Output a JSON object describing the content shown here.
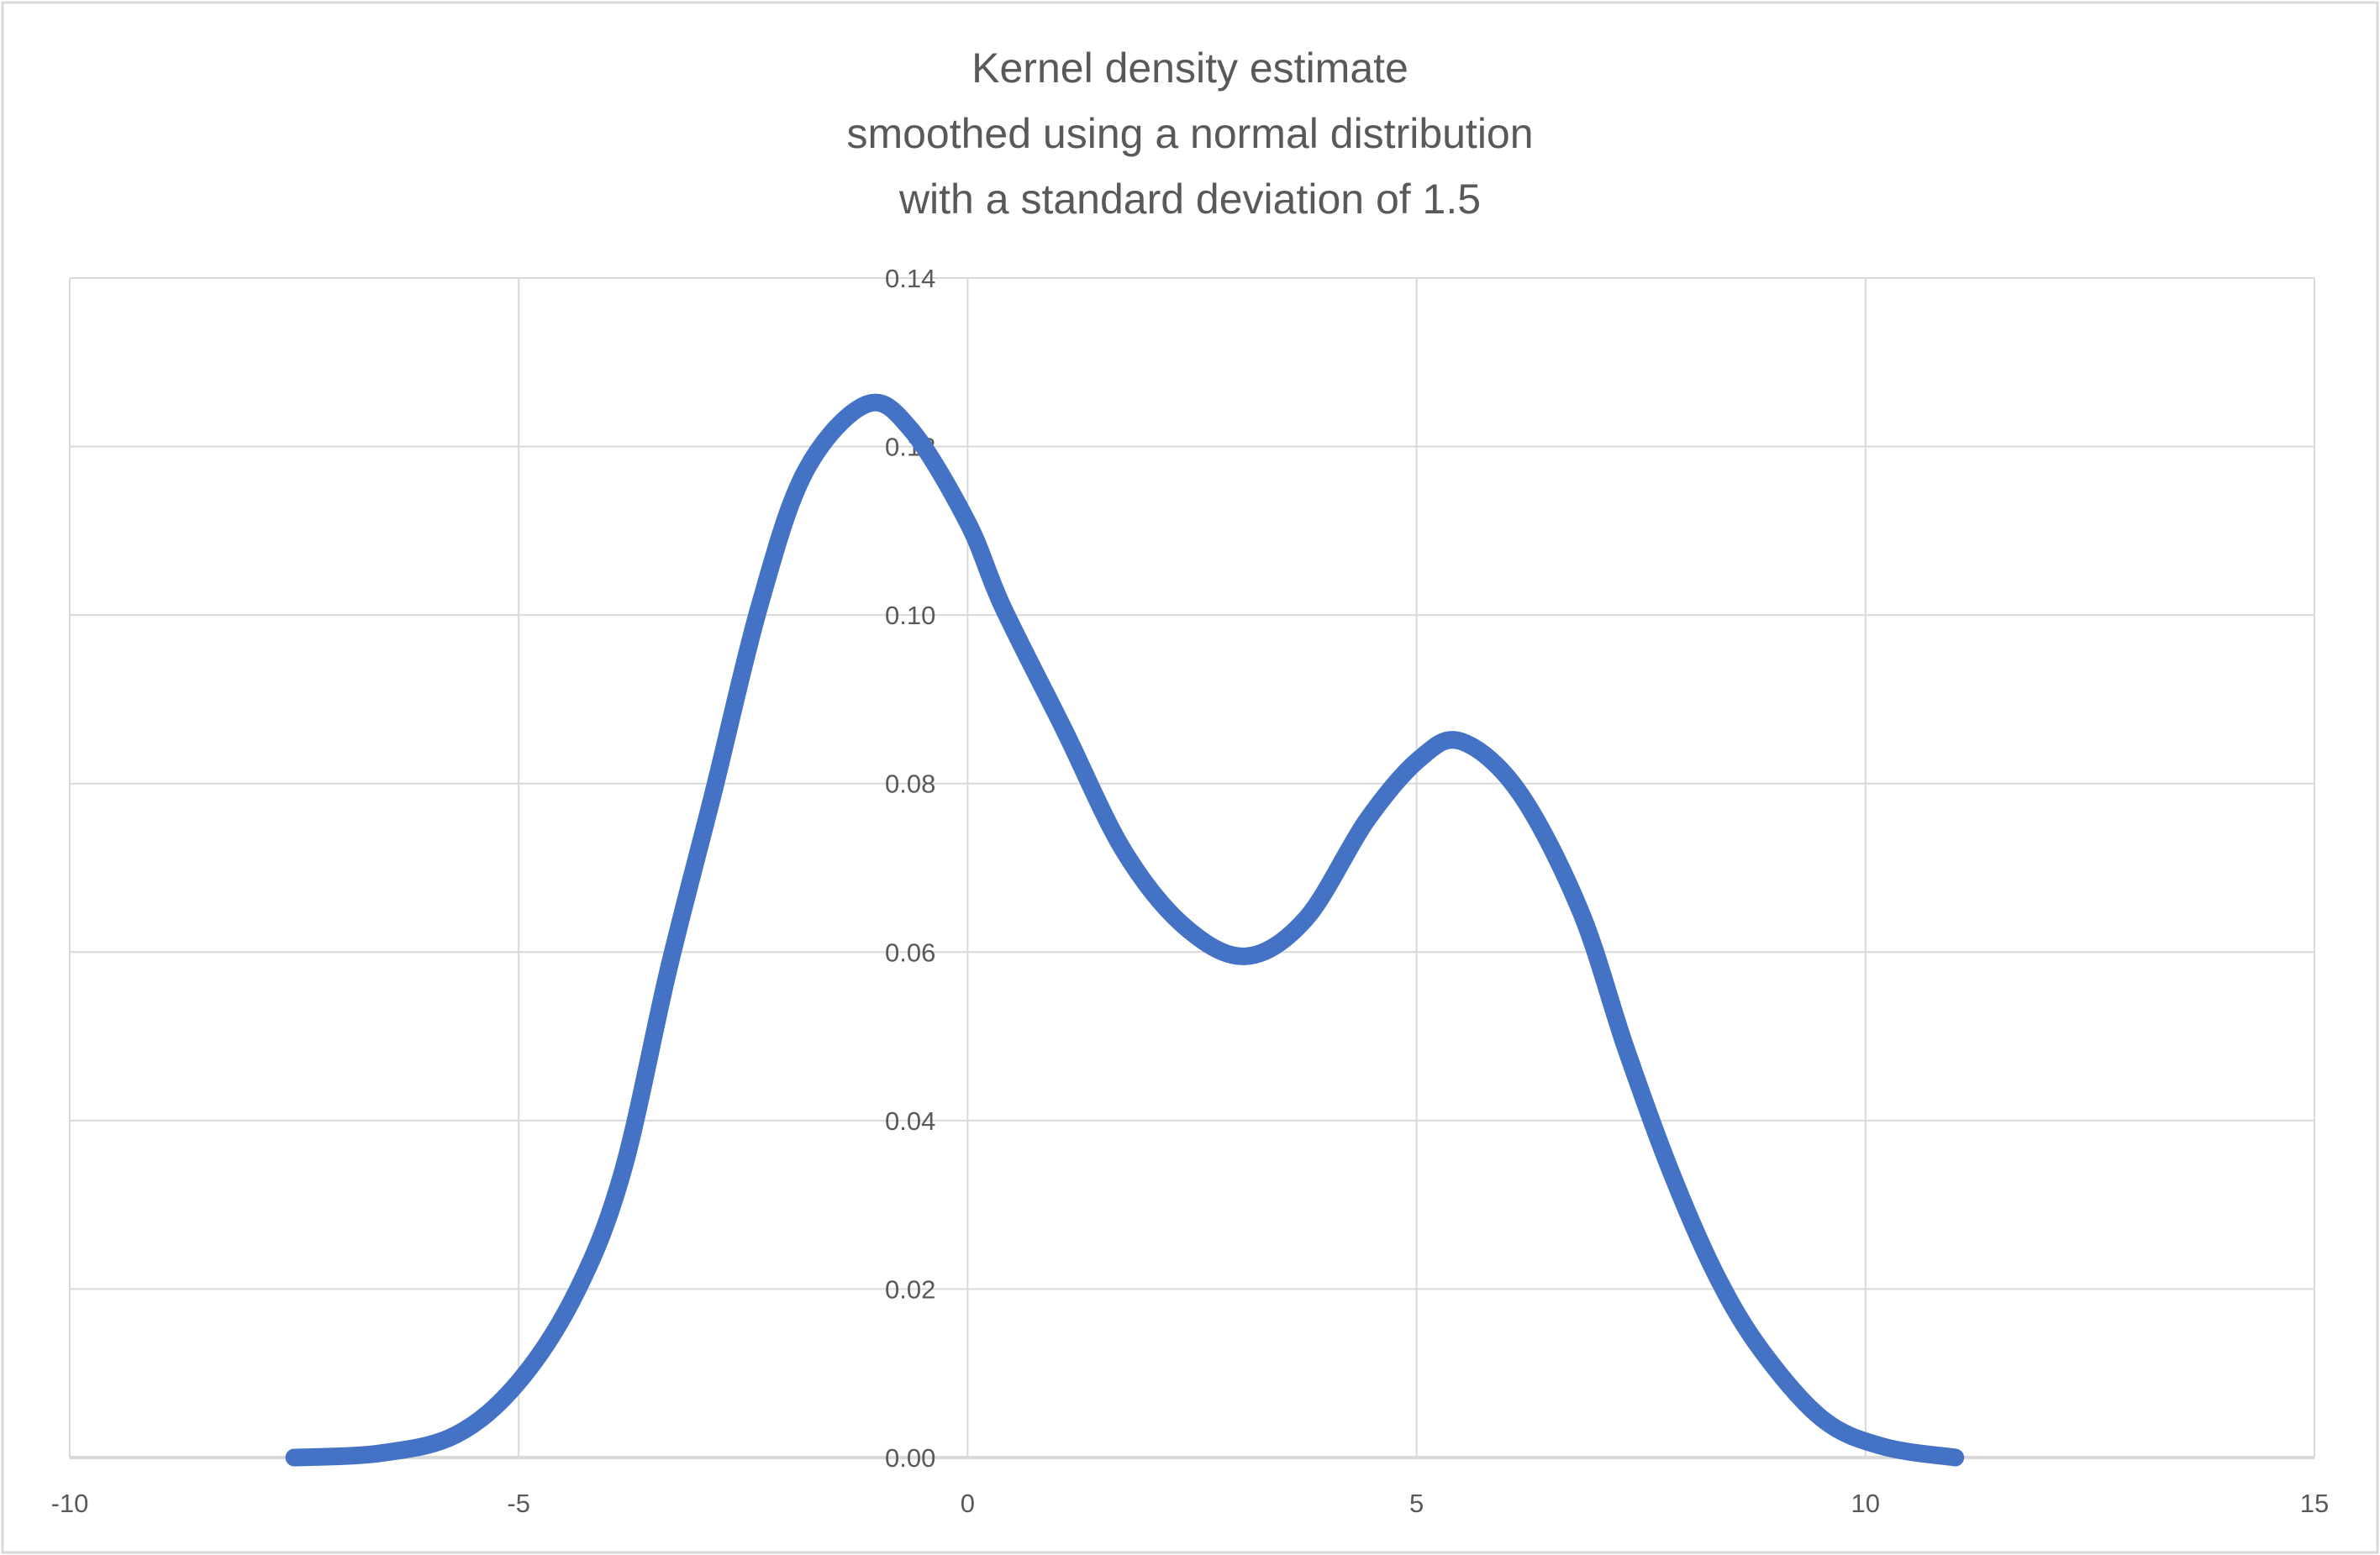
{
  "chart_data": {
    "type": "line",
    "title": [
      "Kernel density estimate",
      "smoothed using a normal distribution",
      "with a standard deviation of 1.5"
    ],
    "xlabel": "",
    "ylabel": "",
    "xlim": [
      -10,
      15
    ],
    "ylim": [
      0,
      0.14
    ],
    "x_ticks": [
      -10,
      -5,
      0,
      5,
      10,
      15
    ],
    "y_ticks": [
      0,
      0.02,
      0.04,
      0.06,
      0.08,
      0.1,
      0.12,
      0.14
    ],
    "x_tick_labels": [
      "-10",
      "-5",
      "0",
      "5",
      "10",
      "15"
    ],
    "y_tick_labels": [
      "0.00",
      "0.02",
      "0.04",
      "0.06",
      "0.08",
      "0.10",
      "0.12",
      "0.14"
    ],
    "grid": true,
    "legend": "none",
    "series_color": "#4472C4",
    "series": [
      {
        "x": [
          -7.5,
          -6.55,
          -5.7,
          -5.0,
          -4.35,
          -3.84,
          -3.33,
          -2.83,
          -2.32,
          -1.81,
          -1.13,
          -0.63,
          0.0,
          0.39,
          1.07,
          1.74,
          2.42,
          3.1,
          3.77,
          4.45,
          5.04,
          5.5,
          6.14,
          6.82,
          7.33,
          7.83,
          8.34,
          8.85,
          9.53,
          10.2,
          11.0
        ],
        "y": [
          0.0,
          0.0005,
          0.0027,
          0.009,
          0.0198,
          0.034,
          0.058,
          0.079,
          0.101,
          0.117,
          0.125,
          0.122,
          0.111,
          0.101,
          0.0865,
          0.072,
          0.063,
          0.0595,
          0.064,
          0.0757,
          0.083,
          0.085,
          0.079,
          0.065,
          0.0486,
          0.034,
          0.0216,
          0.0126,
          0.0045,
          0.0013,
          0.0
        ]
      }
    ]
  }
}
